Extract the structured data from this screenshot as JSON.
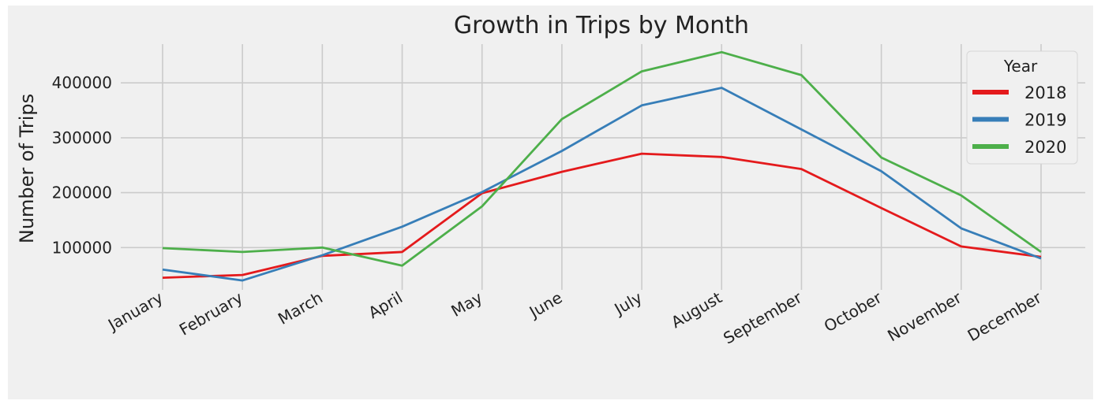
{
  "chart_data": {
    "type": "line",
    "title": "Growth in Trips by Month",
    "xlabel": "",
    "ylabel": "Number of Trips",
    "categories": [
      "January",
      "February",
      "March",
      "April",
      "May",
      "June",
      "July",
      "August",
      "September",
      "October",
      "November",
      "December"
    ],
    "yticks": [
      100000,
      200000,
      300000,
      400000
    ],
    "ytick_labels": [
      "100000",
      "200000",
      "300000",
      "400000"
    ],
    "ylim": [
      30000,
      475000
    ],
    "grid": true,
    "legend": {
      "title": "Year",
      "position": "upper right"
    },
    "series": [
      {
        "name": "2018",
        "color": "#e41a1c",
        "values": [
          45000,
          50000,
          85000,
          92000,
          199000,
          238000,
          271000,
          265000,
          243000,
          172000,
          102000,
          83000
        ]
      },
      {
        "name": "2019",
        "color": "#377eb8",
        "values": [
          60000,
          40000,
          86000,
          138000,
          201000,
          276000,
          359000,
          391000,
          315000,
          239000,
          135000,
          80000
        ]
      },
      {
        "name": "2020",
        "color": "#4daf4a",
        "values": [
          99000,
          92000,
          100000,
          67000,
          175000,
          334000,
          421000,
          456000,
          414000,
          264000,
          195000,
          92000
        ]
      }
    ]
  }
}
